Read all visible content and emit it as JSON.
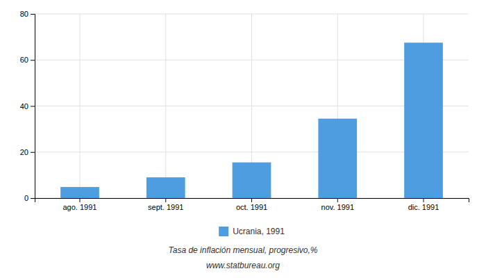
{
  "chart_data": {
    "type": "bar",
    "categories": [
      "ago. 1991",
      "sept. 1991",
      "oct. 1991",
      "nov. 1991",
      "dic. 1991"
    ],
    "series": [
      {
        "name": "Ucrania, 1991",
        "color": "#4d9de0",
        "values": [
          4.8,
          9.0,
          15.5,
          34.5,
          67.5
        ]
      }
    ],
    "ylim": [
      0,
      80
    ],
    "yticks": [
      0,
      20,
      40,
      60,
      80
    ],
    "grid": true,
    "legend": "bottom",
    "annotations": [
      "Tasa de inflación mensual, progresivo,%",
      "www.statbureau.org"
    ]
  }
}
